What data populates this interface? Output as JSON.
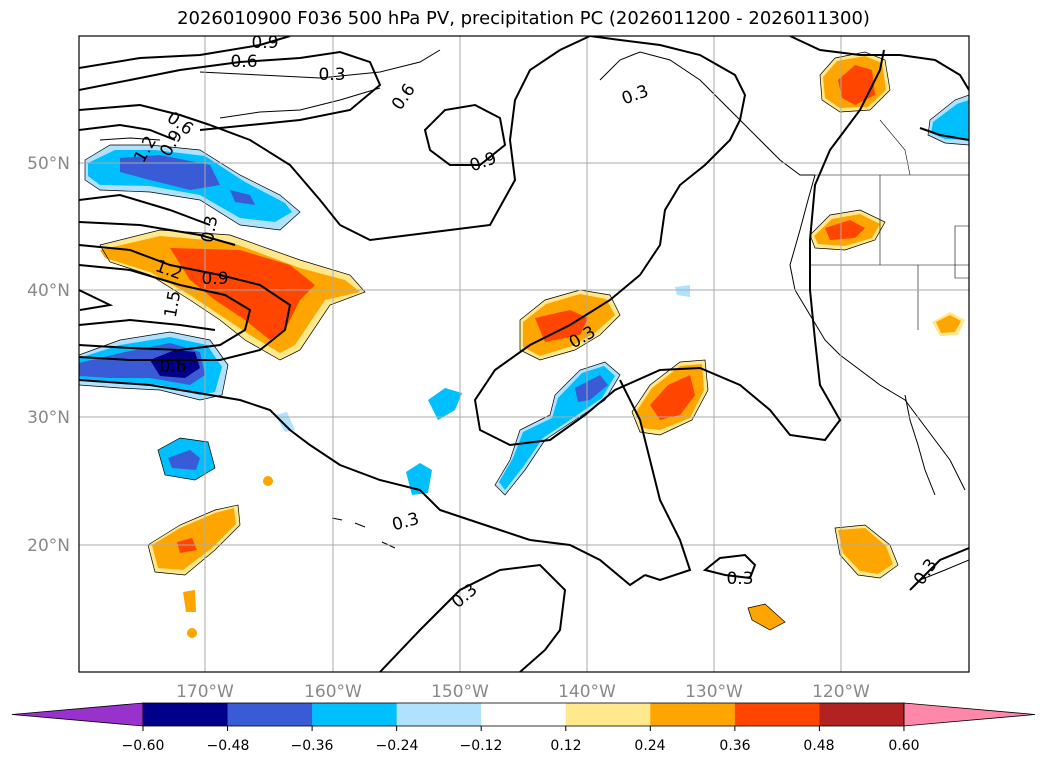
{
  "title": "2026010900 F036 500 hPa PV, precipitation PC (2026011200 - 2026011300)",
  "map": {
    "lon_labels": [
      "170°W",
      "160°W",
      "150°W",
      "140°W",
      "130°W",
      "120°W"
    ],
    "lat_labels": [
      "50°N",
      "40°N",
      "30°N",
      "20°N"
    ]
  },
  "contour_labels": [
    "0.9",
    "0.6",
    "0.3",
    "0.6",
    "0.6",
    "1.2",
    "0.9",
    "0.3",
    "0.9",
    "0.3",
    "1.2",
    "0.9",
    "1.5",
    "0.6",
    "0.3",
    "0.3",
    "0.3",
    "0.3",
    "0.3"
  ],
  "colorbar": {
    "ticks": [
      "−0.60",
      "−0.48",
      "−0.36",
      "−0.24",
      "−0.12",
      "0.12",
      "0.24",
      "0.36",
      "0.48",
      "0.60"
    ],
    "colors": [
      "#9932cc",
      "#00008b",
      "#3a5bd6",
      "#00bfff",
      "#b0e2ff",
      "#ffffff",
      "#ffe98c",
      "#ffa500",
      "#ff4500",
      "#b22222",
      "#ff88aa"
    ]
  }
}
